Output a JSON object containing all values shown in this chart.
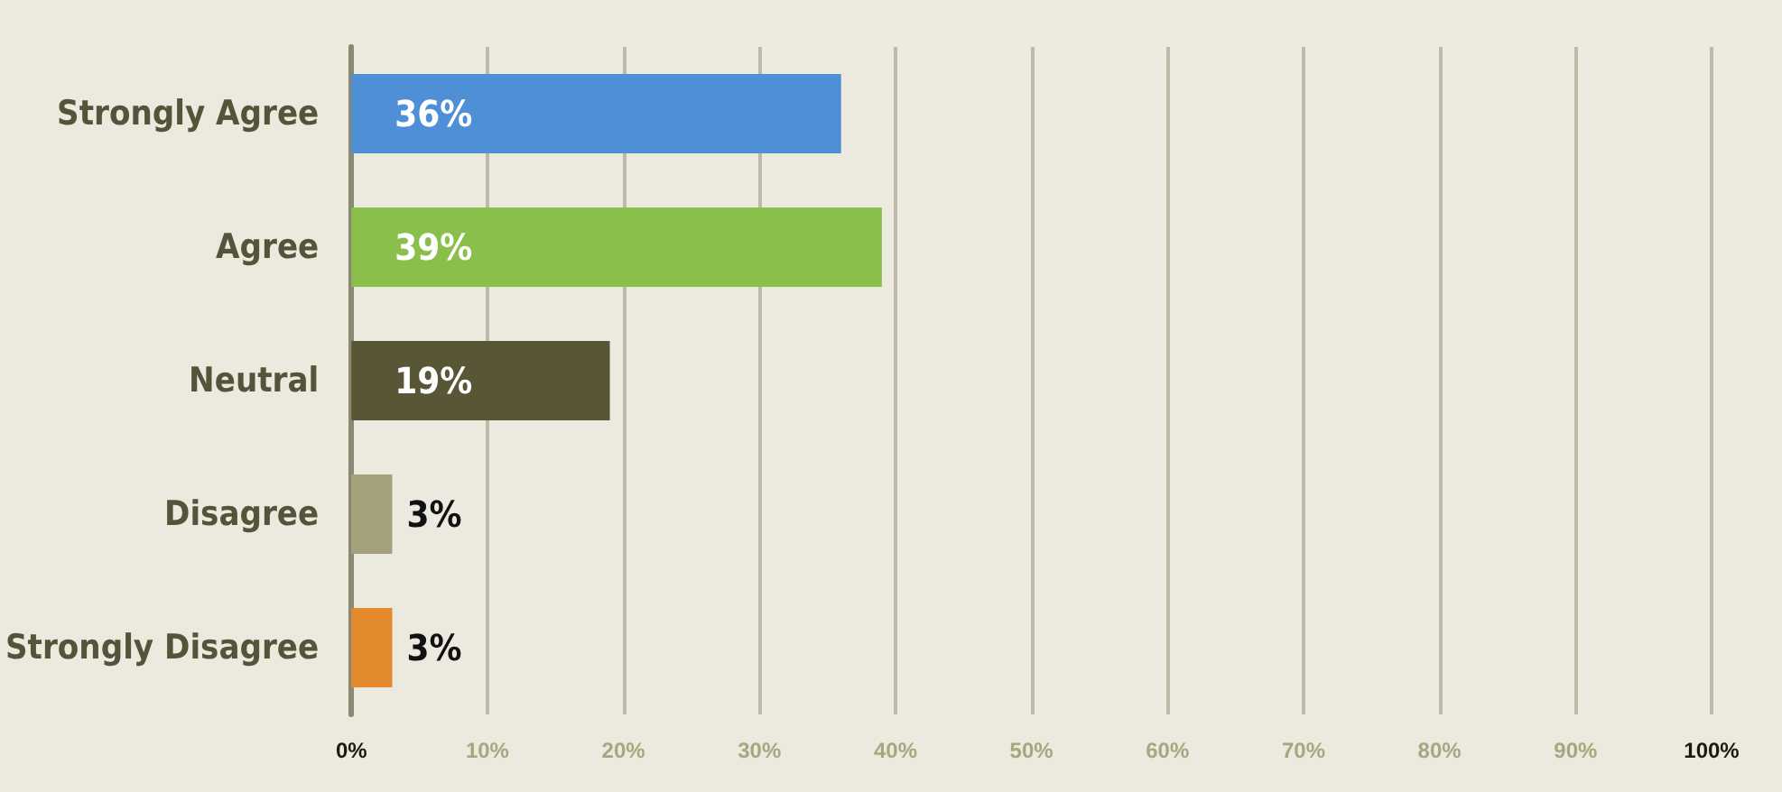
{
  "chart_data": {
    "type": "bar",
    "orientation": "horizontal",
    "categories": [
      "Strongly Agree",
      "Agree",
      "Neutral",
      "Disagree",
      "Strongly Disagree"
    ],
    "values": [
      36,
      39,
      19,
      3,
      3
    ],
    "colors": [
      "#4f8fd6",
      "#8bbf4c",
      "#585636",
      "#a4a17c",
      "#e38b2c"
    ],
    "value_labels": [
      "36%",
      "39%",
      "19%",
      "3%",
      "3%"
    ],
    "xlim": [
      0,
      100
    ],
    "xticks": [
      {
        "value": 0,
        "label": "0%"
      },
      {
        "value": 10,
        "label": "10%"
      },
      {
        "value": 20,
        "label": "20%"
      },
      {
        "value": 30,
        "label": "30%"
      },
      {
        "value": 40,
        "label": "40%"
      },
      {
        "value": 50,
        "label": "50%"
      },
      {
        "value": 60,
        "label": "60%"
      },
      {
        "value": 70,
        "label": "70%"
      },
      {
        "value": 80,
        "label": "80%"
      },
      {
        "value": 90,
        "label": "90%"
      },
      {
        "value": 100,
        "label": "100%"
      }
    ],
    "grid": "x"
  }
}
